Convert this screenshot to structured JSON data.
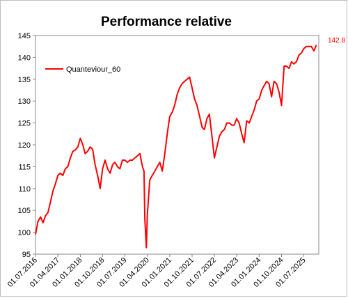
{
  "chart_data": {
    "type": "line",
    "title": "Performance relative",
    "xlabel": "",
    "ylabel": "",
    "ylim": [
      95,
      145
    ],
    "yticks": [
      95,
      100,
      105,
      110,
      115,
      120,
      125,
      130,
      135,
      140,
      145
    ],
    "xlim": [
      "2016-07-01",
      "2025-12-31"
    ],
    "xticks": [
      "01.07.2016",
      "01.04.2017",
      "01.01.2018",
      "01.10.2018",
      "01.07.2019",
      "01.04.2020",
      "01.01.2021",
      "01.10.2021",
      "01.07.2022",
      "01.04.2023",
      "01.01.2024",
      "01.10.2024",
      "01.07.2025"
    ],
    "grid": false,
    "legend_position": "top-left",
    "last_value_label": "142.8",
    "colors": {
      "series": "#ff0000",
      "last_label": "#ff0000",
      "axis": "#888888"
    },
    "series": [
      {
        "name": "Quanteviour_60",
        "x": [
          "2016-07-01",
          "2016-08-01",
          "2016-09-01",
          "2016-10-01",
          "2016-11-01",
          "2016-12-01",
          "2017-01-01",
          "2017-02-01",
          "2017-03-01",
          "2017-04-01",
          "2017-05-01",
          "2017-06-01",
          "2017-07-01",
          "2017-08-01",
          "2017-09-01",
          "2017-10-01",
          "2017-11-01",
          "2017-12-01",
          "2018-01-01",
          "2018-02-01",
          "2018-03-01",
          "2018-04-01",
          "2018-05-01",
          "2018-06-01",
          "2018-07-01",
          "2018-08-01",
          "2018-09-01",
          "2018-10-01",
          "2018-11-01",
          "2018-12-01",
          "2019-01-01",
          "2019-02-01",
          "2019-03-01",
          "2019-04-01",
          "2019-05-01",
          "2019-06-01",
          "2019-07-01",
          "2019-08-01",
          "2019-09-01",
          "2019-10-01",
          "2019-11-01",
          "2019-12-01",
          "2020-01-01",
          "2020-02-01",
          "2020-02-20",
          "2020-03-01",
          "2020-03-20",
          "2020-04-01",
          "2020-05-01",
          "2020-06-01",
          "2020-07-01",
          "2020-08-01",
          "2020-09-01",
          "2020-10-01",
          "2020-11-01",
          "2020-12-01",
          "2021-01-01",
          "2021-02-01",
          "2021-03-01",
          "2021-04-01",
          "2021-05-01",
          "2021-06-01",
          "2021-07-01",
          "2021-08-01",
          "2021-09-01",
          "2021-10-01",
          "2021-11-01",
          "2021-12-01",
          "2022-01-01",
          "2022-02-01",
          "2022-03-01",
          "2022-04-01",
          "2022-05-01",
          "2022-06-01",
          "2022-07-01",
          "2022-08-01",
          "2022-09-01",
          "2022-10-01",
          "2022-11-01",
          "2022-12-01",
          "2023-01-01",
          "2023-02-01",
          "2023-03-01",
          "2023-04-01",
          "2023-05-01",
          "2023-06-01",
          "2023-07-01",
          "2023-08-01",
          "2023-09-01",
          "2023-10-01",
          "2023-11-01",
          "2023-12-01",
          "2024-01-01",
          "2024-02-01",
          "2024-03-01",
          "2024-04-01",
          "2024-05-01",
          "2024-06-01",
          "2024-07-01",
          "2024-08-01",
          "2024-09-01",
          "2024-10-01",
          "2024-11-01",
          "2024-12-01",
          "2025-01-01",
          "2025-02-01",
          "2025-03-01",
          "2025-04-01",
          "2025-05-01",
          "2025-06-01",
          "2025-07-01",
          "2025-08-01",
          "2025-09-01",
          "2025-10-01",
          "2025-11-01",
          "2025-12-01"
        ],
        "values": [
          99.5,
          102.5,
          103.5,
          102.2,
          103.8,
          104.5,
          107.0,
          109.5,
          111.0,
          113.0,
          113.5,
          113.0,
          114.5,
          115.0,
          117.0,
          118.5,
          118.8,
          119.5,
          121.5,
          120.0,
          118.0,
          118.5,
          119.5,
          119.0,
          115.5,
          113.0,
          110.0,
          114.5,
          116.5,
          114.5,
          113.5,
          115.5,
          116.0,
          115.0,
          114.5,
          116.5,
          116.5,
          116.0,
          116.5,
          116.5,
          117.0,
          117.5,
          118.0,
          115.0,
          114.0,
          103.0,
          96.5,
          104.0,
          112.0,
          113.0,
          114.0,
          115.0,
          116.0,
          114.0,
          118.0,
          122.5,
          126.5,
          127.5,
          129.0,
          131.5,
          133.0,
          134.0,
          134.5,
          135.0,
          135.5,
          133.0,
          130.5,
          129.0,
          126.5,
          124.0,
          123.5,
          126.0,
          127.0,
          122.0,
          117.0,
          119.5,
          122.0,
          123.0,
          123.5,
          125.0,
          125.0,
          124.5,
          124.5,
          126.0,
          125.0,
          122.5,
          120.5,
          125.5,
          125.0,
          126.5,
          128.0,
          130.0,
          130.5,
          132.5,
          133.5,
          134.5,
          134.0,
          131.0,
          134.5,
          134.0,
          132.0,
          129.0,
          138.0,
          138.0,
          137.5,
          139.0,
          138.5,
          139.0,
          140.5,
          141.0,
          142.0,
          142.5,
          142.5,
          142.5,
          141.5,
          142.8
        ]
      }
    ]
  }
}
